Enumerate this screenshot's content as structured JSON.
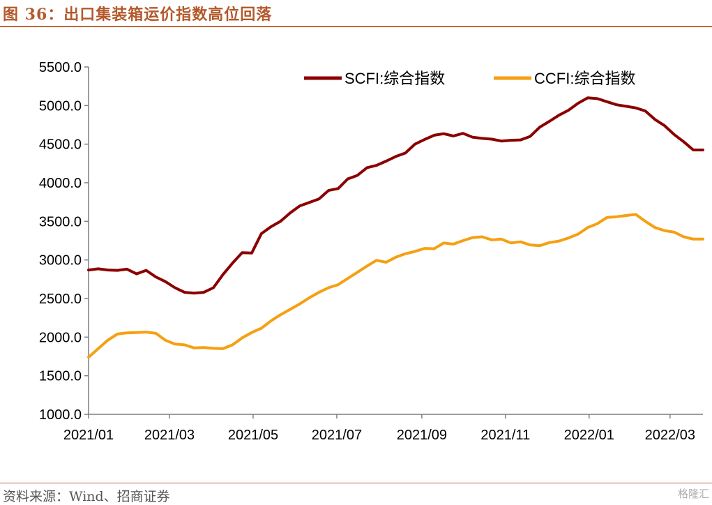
{
  "header": {
    "title": "图 36：出口集装箱运价指数高位回落"
  },
  "footer": {
    "source": "资料来源：Wind、招商证券",
    "watermark": "格隆汇"
  },
  "chart_data": {
    "type": "line",
    "title": "",
    "xlabel": "",
    "ylabel": "",
    "ylim": [
      1000,
      5500
    ],
    "yticks": [
      "1000.0",
      "1500.0",
      "2000.0",
      "2500.0",
      "3000.0",
      "3500.0",
      "4000.0",
      "4500.0",
      "5000.0",
      "5500.0"
    ],
    "xticks": [
      "2021/01",
      "2021/03",
      "2021/05",
      "2021/07",
      "2021/09",
      "2021/11",
      "2022/01",
      "2022/03"
    ],
    "xrange": [
      "2021-01-01",
      "2022-03-25"
    ],
    "grid": false,
    "legend_position": "top",
    "x": [
      "2021-01-01",
      "2021-01-08",
      "2021-01-15",
      "2021-01-22",
      "2021-01-29",
      "2021-02-05",
      "2021-02-12",
      "2021-02-19",
      "2021-02-26",
      "2021-03-05",
      "2021-03-12",
      "2021-03-19",
      "2021-03-26",
      "2021-04-02",
      "2021-04-09",
      "2021-04-16",
      "2021-04-23",
      "2021-04-30",
      "2021-05-07",
      "2021-05-14",
      "2021-05-21",
      "2021-05-28",
      "2021-06-04",
      "2021-06-11",
      "2021-06-18",
      "2021-06-25",
      "2021-07-02",
      "2021-07-09",
      "2021-07-16",
      "2021-07-23",
      "2021-07-30",
      "2021-08-06",
      "2021-08-13",
      "2021-08-20",
      "2021-08-27",
      "2021-09-03",
      "2021-09-10",
      "2021-09-17",
      "2021-09-24",
      "2021-10-01",
      "2021-10-08",
      "2021-10-15",
      "2021-10-22",
      "2021-10-29",
      "2021-11-05",
      "2021-11-12",
      "2021-11-19",
      "2021-11-26",
      "2021-12-03",
      "2021-12-10",
      "2021-12-17",
      "2021-12-24",
      "2021-12-31",
      "2022-01-07",
      "2022-01-14",
      "2022-01-21",
      "2022-01-28",
      "2022-02-04",
      "2022-02-11",
      "2022-02-18",
      "2022-02-25",
      "2022-03-04",
      "2022-03-11",
      "2022-03-18",
      "2022-03-25"
    ],
    "series": [
      {
        "name": "SCFI:综合指数",
        "color": "#8b0000",
        "values": [
          2870,
          2885,
          2870,
          2865,
          2880,
          2820,
          2865,
          2780,
          2720,
          2640,
          2580,
          2570,
          2580,
          2640,
          2810,
          2960,
          3095,
          3090,
          3340,
          3430,
          3500,
          3610,
          3700,
          3745,
          3790,
          3900,
          3925,
          4050,
          4095,
          4195,
          4225,
          4280,
          4340,
          4385,
          4500,
          4560,
          4615,
          4635,
          4605,
          4640,
          4590,
          4575,
          4565,
          4540,
          4550,
          4555,
          4600,
          4720,
          4795,
          4875,
          4940,
          5030,
          5100,
          5090,
          5050,
          5010,
          4990,
          4970,
          4930,
          4820,
          4740,
          4625,
          4530,
          4425,
          4425
        ]
      },
      {
        "name": "CCFI:综合指数",
        "color": "#f5a012",
        "values": [
          1740,
          1850,
          1960,
          2040,
          2055,
          2060,
          2065,
          2050,
          1960,
          1910,
          1900,
          1860,
          1865,
          1855,
          1850,
          1900,
          1990,
          2060,
          2115,
          2210,
          2290,
          2360,
          2430,
          2510,
          2580,
          2640,
          2680,
          2760,
          2840,
          2920,
          2995,
          2970,
          3035,
          3080,
          3110,
          3150,
          3145,
          3220,
          3205,
          3250,
          3290,
          3300,
          3260,
          3270,
          3220,
          3235,
          3195,
          3185,
          3225,
          3245,
          3285,
          3335,
          3420,
          3470,
          3550,
          3560,
          3575,
          3590,
          3500,
          3420,
          3380,
          3360,
          3300,
          3270,
          3270
        ]
      }
    ]
  }
}
